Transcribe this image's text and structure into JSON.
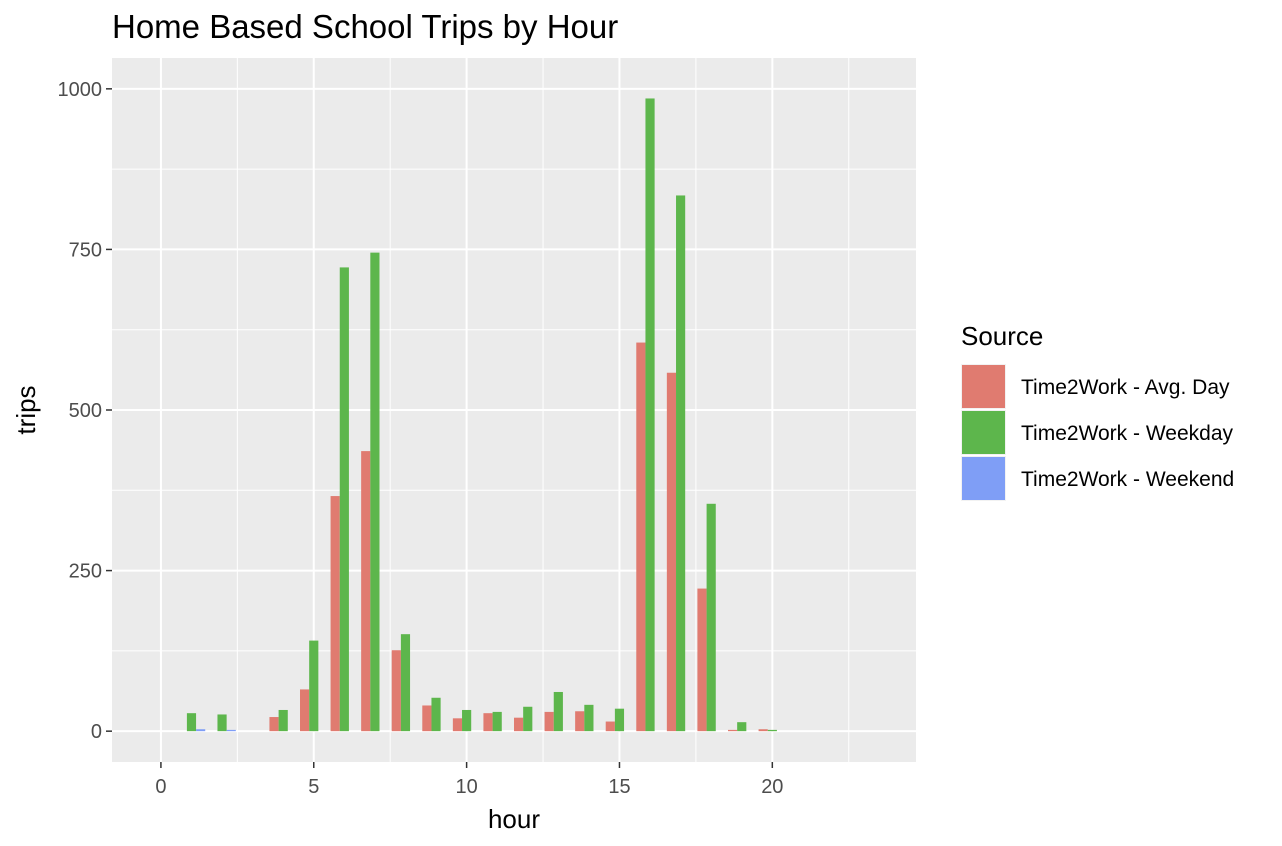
{
  "chart_data": {
    "type": "bar",
    "title": "Home Based School Trips by Hour",
    "xlabel": "hour",
    "ylabel": "trips",
    "xlim": [
      -1.6,
      24.7
    ],
    "ylim": [
      -48,
      1048
    ],
    "xticks": [
      0,
      5,
      10,
      15,
      20
    ],
    "yticks": [
      0,
      250,
      500,
      750,
      1000
    ],
    "x_minor_grid": [
      2.5,
      7.5,
      12.5,
      17.5,
      22.5
    ],
    "y_minor_grid": [
      125,
      375,
      625,
      875
    ],
    "grid": true,
    "background": "#ebebeb",
    "legend": {
      "title": "Source",
      "position": "right",
      "entries": [
        "Time2Work - Avg. Day",
        "Time2Work - Weekday",
        "Time2Work - Weekend"
      ]
    },
    "series": [
      {
        "name": "Time2Work - Avg. Day",
        "color": "#e07b70",
        "x": [
          4,
          5,
          6,
          7,
          8,
          9,
          10,
          11,
          12,
          13,
          14,
          15,
          16,
          17,
          18,
          19,
          20
        ],
        "values": [
          22,
          65,
          366,
          436,
          126,
          40,
          20,
          28,
          21,
          30,
          31,
          15,
          605,
          558,
          222,
          2,
          3
        ]
      },
      {
        "name": "Time2Work - Weekday",
        "color": "#5db64c",
        "x": [
          1,
          2,
          4,
          5,
          6,
          7,
          8,
          9,
          10,
          11,
          12,
          13,
          14,
          15,
          16,
          17,
          18,
          19,
          20
        ],
        "values": [
          28,
          26,
          33,
          141,
          722,
          745,
          151,
          52,
          33,
          30,
          38,
          61,
          41,
          35,
          985,
          834,
          354,
          14,
          2
        ]
      },
      {
        "name": "Time2Work - Weekend",
        "color": "#7f9ef6",
        "x": [
          1,
          2
        ],
        "values": [
          3,
          2
        ]
      }
    ]
  }
}
